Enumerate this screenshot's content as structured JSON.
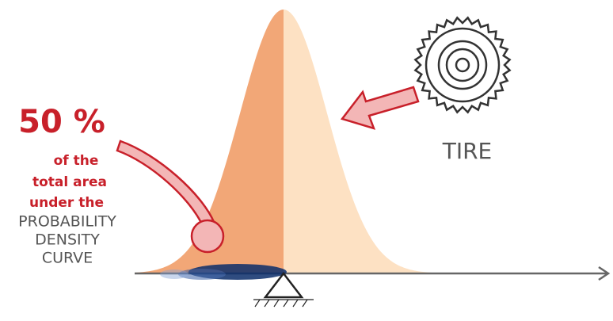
{
  "annotation": {
    "percent": "50 %",
    "lines": [
      "of the",
      "total area",
      "under the"
    ],
    "emphasis": [
      "PROBABILITY",
      "DENSITY",
      "CURVE"
    ]
  },
  "object": {
    "label": "TIRE"
  }
}
